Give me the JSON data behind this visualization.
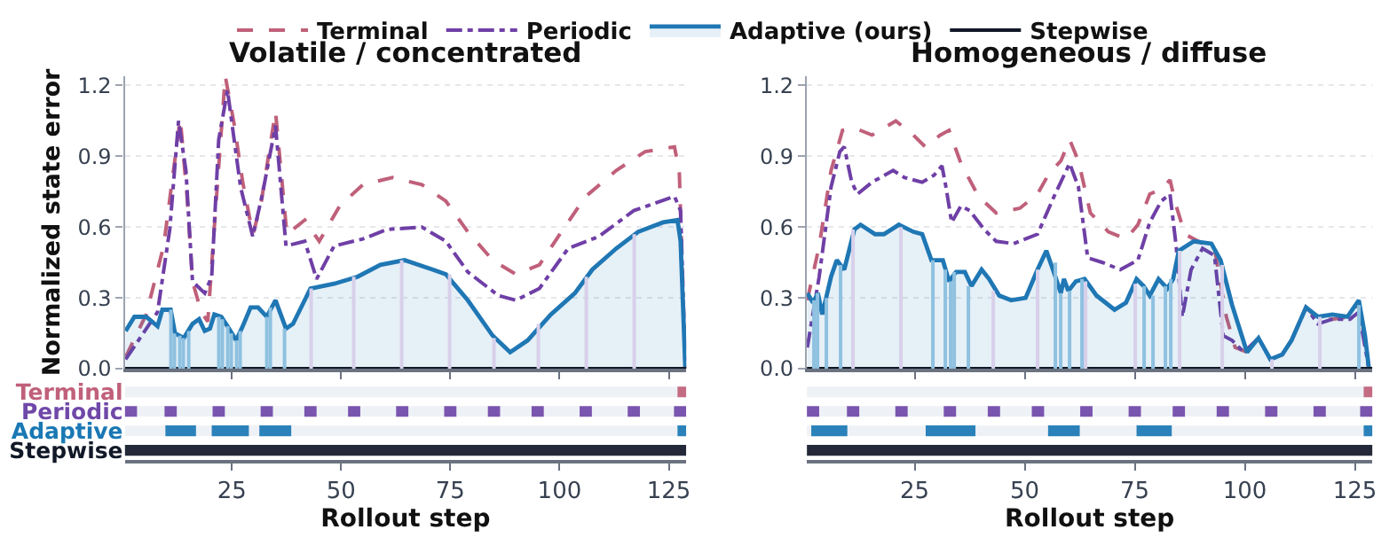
{
  "chart_data": [
    {
      "type": "line",
      "title": "Volatile / concentrated",
      "ylabel": "Normalized state error",
      "xlim": [
        0.5,
        129
      ],
      "xticks": [
        25,
        50,
        75,
        100,
        125
      ],
      "ylim": [
        0,
        1.24
      ],
      "yticks": [
        {
          "value": 0,
          "label": "0.0"
        },
        0.3,
        0.6,
        0.9,
        1.2
      ],
      "grid": "y",
      "legend": "top",
      "tick_labels": "y",
      "series": [
        {
          "type": "line",
          "name": "Terminal",
          "color": "#c0607a",
          "line_style": "dashed",
          "x": [
            0.7,
            5.4,
            9.4,
            13.2,
            14.8,
            16,
            18,
            19.5,
            21,
            23.5,
            25.5,
            27.5,
            29.8,
            31.6,
            35,
            37.6,
            41.7,
            45,
            49.7,
            55,
            61.8,
            68.5,
            74,
            79,
            84.7,
            90,
            95.4,
            100.8,
            106,
            113,
            119.6,
            126.3,
            127.4,
            128.8
          ],
          "values": [
            0.05,
            0.23,
            0.52,
            1.06,
            0.72,
            0.37,
            0.24,
            0.2,
            0.6,
            1.24,
            1.04,
            0.79,
            0.57,
            0.69,
            1.09,
            0.57,
            0.63,
            0.54,
            0.69,
            0.78,
            0.81,
            0.78,
            0.71,
            0.58,
            0.46,
            0.4,
            0.44,
            0.59,
            0.73,
            0.84,
            0.92,
            0.94,
            0.84,
            0.0
          ]
        },
        {
          "type": "line",
          "name": "Periodic",
          "color": "#6f3fa6",
          "line_style": "dashdot",
          "x": [
            0.7,
            8,
            10.8,
            12.8,
            14.5,
            16,
            18.8,
            20.4,
            22,
            24,
            27,
            29.8,
            32,
            35,
            37.4,
            41.7,
            44.4,
            48.4,
            55,
            60.5,
            68.5,
            74,
            79,
            86,
            90,
            95.4,
            102,
            109,
            117,
            126.3,
            127.7,
            128.8
          ],
          "values": [
            0.04,
            0.24,
            0.59,
            1.05,
            0.84,
            0.37,
            0.32,
            0.39,
            0.97,
            1.18,
            0.77,
            0.56,
            0.74,
            1.03,
            0.52,
            0.54,
            0.38,
            0.52,
            0.55,
            0.59,
            0.6,
            0.54,
            0.41,
            0.31,
            0.29,
            0.34,
            0.51,
            0.56,
            0.67,
            0.73,
            0.67,
            0.0
          ]
        },
        {
          "type": "area",
          "name": "Adaptive (ours)",
          "color": "#1f77b4",
          "line_style": "solid",
          "x": [
            0.7,
            2.7,
            5.4,
            8,
            9.1,
            11,
            12,
            14,
            16,
            17.5,
            18.8,
            20,
            21,
            22.6,
            24,
            26,
            27.5,
            29.3,
            31,
            33,
            35,
            37.4,
            39,
            43,
            48.4,
            53.8,
            59,
            64.5,
            71,
            74,
            79,
            84.7,
            88.7,
            92.7,
            98,
            103.5,
            107.5,
            113,
            118,
            123.7,
            127,
            127.7,
            128.8
          ],
          "values": [
            0.16,
            0.22,
            0.22,
            0.18,
            0.25,
            0.25,
            0.15,
            0.13,
            0.19,
            0.21,
            0.16,
            0.17,
            0.23,
            0.22,
            0.18,
            0.12,
            0.18,
            0.26,
            0.26,
            0.22,
            0.29,
            0.17,
            0.19,
            0.34,
            0.36,
            0.39,
            0.44,
            0.46,
            0.42,
            0.4,
            0.29,
            0.14,
            0.07,
            0.12,
            0.23,
            0.32,
            0.42,
            0.51,
            0.58,
            0.62,
            0.63,
            0.54,
            0.0
          ]
        },
        {
          "type": "line",
          "name": "Stepwise",
          "color": "#111827",
          "line_style": "solid",
          "x": [
            0.5,
            129
          ],
          "values": [
            0,
            0
          ]
        },
        {
          "type": "bar",
          "color": "#d8d0ea",
          "x": [
            43,
            53,
            64,
            75,
            85,
            95,
            106,
            117
          ],
          "values": [
            0.34,
            0.39,
            0.46,
            0.4,
            0.13,
            0.19,
            0.39,
            0.57
          ]
        },
        {
          "type": "bar",
          "color": "#8fc1e0",
          "x": [
            11,
            12,
            13,
            14,
            15,
            22,
            23,
            24,
            25,
            26,
            27,
            33,
            34,
            37
          ],
          "values": [
            0.25,
            0.15,
            0.14,
            0.13,
            0.16,
            0.22,
            0.21,
            0.18,
            0.15,
            0.12,
            0.16,
            0.22,
            0.26,
            0.17
          ]
        }
      ]
    },
    {
      "type": "bar",
      "orientation": "horizontal",
      "xlabel": "Rollout step",
      "categories": [
        "Terminal",
        "Periodic",
        "Adaptive",
        "Stepwise"
      ],
      "xlim": [
        0.5,
        129
      ],
      "xticks": [
        25,
        50,
        75,
        100,
        125
      ],
      "series": [
        {
          "colors": [
            "#c0607a",
            "#7048a8",
            "#1a78b4",
            "#111827"
          ],
          "base": [
            127,
            0.5,
            9.8,
            0.5
          ],
          "values": [
            2,
            2.8,
            7,
            128.5
          ]
        },
        {
          "colors": [
            "#c0607a",
            "#7048a8",
            "#1a78b4",
            "#111827"
          ],
          "base": [
            null,
            9.6,
            20.4,
            null
          ],
          "values": [
            null,
            2.8,
            8.5,
            null
          ]
        },
        {
          "colors": [
            "#c0607a",
            "#7048a8",
            "#1a78b4",
            "#111827"
          ],
          "base": [
            null,
            20.6,
            31.3,
            null
          ],
          "values": [
            null,
            2.8,
            7.3,
            null
          ]
        },
        {
          "colors": [
            "#c0607a",
            "#7048a8",
            "#1a78b4",
            "#111827"
          ],
          "base": [
            null,
            31.6,
            127,
            null
          ],
          "values": [
            null,
            2.8,
            2,
            null
          ]
        },
        {
          "colors": [
            "#c0607a",
            "#7048a8",
            "#1a78b4",
            "#111827"
          ],
          "base": [
            null,
            41.6,
            null,
            null
          ],
          "values": [
            null,
            2.8,
            null,
            null
          ]
        },
        {
          "colors": [
            "#c0607a",
            "#7048a8",
            "#1a78b4",
            "#111827"
          ],
          "base": [
            null,
            51.6,
            null,
            null
          ],
          "values": [
            null,
            2.8,
            null,
            null
          ]
        },
        {
          "colors": [
            "#c0607a",
            "#7048a8",
            "#1a78b4",
            "#111827"
          ],
          "base": [
            null,
            62.6,
            null,
            null
          ],
          "values": [
            null,
            2.8,
            null,
            null
          ]
        },
        {
          "colors": [
            "#c0607a",
            "#7048a8",
            "#1a78b4",
            "#111827"
          ],
          "base": [
            null,
            73.6,
            null,
            null
          ],
          "values": [
            null,
            2.8,
            null,
            null
          ]
        },
        {
          "colors": [
            "#c0607a",
            "#7048a8",
            "#1a78b4",
            "#111827"
          ],
          "base": [
            null,
            83.6,
            null,
            null
          ],
          "values": [
            null,
            2.8,
            null,
            null
          ]
        },
        {
          "colors": [
            "#c0607a",
            "#7048a8",
            "#1a78b4",
            "#111827"
          ],
          "base": [
            null,
            93.6,
            null,
            null
          ],
          "values": [
            null,
            2.8,
            null,
            null
          ]
        },
        {
          "colors": [
            "#c0607a",
            "#7048a8",
            "#1a78b4",
            "#111827"
          ],
          "base": [
            null,
            104.6,
            null,
            null
          ],
          "values": [
            null,
            2.8,
            null,
            null
          ]
        },
        {
          "colors": [
            "#c0607a",
            "#7048a8",
            "#1a78b4",
            "#111827"
          ],
          "base": [
            null,
            115.6,
            null,
            null
          ],
          "values": [
            null,
            2.8,
            null,
            null
          ]
        },
        {
          "colors": [
            "#c0607a",
            "#7048a8",
            "#1a78b4",
            "#111827"
          ],
          "base": [
            null,
            126.2,
            null,
            null
          ],
          "values": [
            null,
            2.8,
            null,
            null
          ]
        }
      ]
    },
    {
      "type": "line",
      "title": "Homogeneous / diffuse",
      "xlim": [
        0.5,
        129
      ],
      "xticks": [
        25,
        50,
        75,
        100,
        125
      ],
      "ylim": [
        0,
        1.24
      ],
      "yticks": [
        {
          "value": 0,
          "label": "0.0"
        },
        0.3,
        0.6,
        0.9,
        1.2
      ],
      "grid": "y",
      "tick_labels": "y",
      "series": [
        {
          "type": "line",
          "color": "#c0607a",
          "line_style": "dashed",
          "x": [
            0.6,
            3.3,
            6,
            8.6,
            11.3,
            15.3,
            20.7,
            24.7,
            27.4,
            30.8,
            32.8,
            35.5,
            39.5,
            43.5,
            48.9,
            52.9,
            55.6,
            58.2,
            60.2,
            62.2,
            64.9,
            69,
            73,
            75.7,
            78.4,
            81,
            83,
            84.4,
            86.4,
            90.4,
            93.1,
            95.8,
            97.8,
            100.5,
            103.1,
            105.8,
            108.5,
            110.6,
            113.9,
            116.6,
            119.9,
            123.9,
            125.9,
            128.2
          ],
          "values": [
            0.29,
            0.52,
            0.84,
            1.01,
            1.02,
            0.99,
            1.05,
            0.99,
            0.94,
            0.99,
            1.01,
            0.87,
            0.73,
            0.66,
            0.68,
            0.74,
            0.83,
            0.88,
            0.97,
            0.88,
            0.66,
            0.58,
            0.55,
            0.61,
            0.74,
            0.76,
            0.8,
            0.69,
            0.57,
            0.53,
            0.51,
            0.22,
            0.09,
            0.07,
            null,
            null,
            null,
            0.12,
            0.26,
            0.21,
            0.21,
            0.22,
            0.28,
            0.0
          ]
        },
        {
          "type": "line",
          "color": "#6f3fa6",
          "line_style": "dashdot",
          "x": [
            0.6,
            3.3,
            6,
            8,
            9,
            10.7,
            12,
            15.3,
            20.1,
            22.7,
            26.7,
            29.4,
            31.2,
            32.1,
            33.4,
            35.5,
            37.5,
            40.8,
            43.5,
            47.5,
            52.9,
            56.9,
            60.2,
            62.2,
            64.3,
            67.7,
            71.7,
            75.7,
            78.4,
            81,
            83,
            84.4,
            85.8,
            87.8,
            90.4,
            93.1,
            95.1,
            97.1,
            99.8,
            103.1,
            105.8,
            108.5,
            110.6,
            113.9,
            116.6,
            119.9,
            123.9,
            125.9,
            128.2
          ],
          "values": [
            0.09,
            0.39,
            0.77,
            0.92,
            0.94,
            0.79,
            0.74,
            0.79,
            0.84,
            0.81,
            0.79,
            0.82,
            0.86,
            0.77,
            0.62,
            0.69,
            0.67,
            0.59,
            0.54,
            0.53,
            0.57,
            0.74,
            0.87,
            0.77,
            0.47,
            0.45,
            0.42,
            0.46,
            0.62,
            0.71,
            0.74,
            0.52,
            0.22,
            0.42,
            0.51,
            0.48,
            0.14,
            0.12,
            0.07,
            0.13,
            0.04,
            0.06,
            0.12,
            0.26,
            0.19,
            0.21,
            0.21,
            0.24,
            0.0
          ]
        },
        {
          "type": "area",
          "color": "#1f77b4",
          "line_style": "solid",
          "x": [
            0.6,
            1.9,
            3,
            4,
            6,
            7.3,
            9,
            11.3,
            12.7,
            16,
            18,
            21.4,
            24.7,
            26.7,
            28.8,
            31.4,
            32.8,
            34.4,
            36.4,
            37.9,
            40.2,
            41.9,
            44.2,
            46.9,
            50.2,
            52.9,
            54.9,
            56.6,
            58.2,
            58.9,
            59.9,
            61.6,
            63.6,
            66.3,
            70.4,
            73,
            75.4,
            77,
            78.4,
            80.4,
            82.4,
            83.7,
            85,
            88.4,
            92.4,
            94.5,
            97.1,
            100.5,
            103.1,
            105.8,
            108.5,
            110.6,
            113.9,
            116.6,
            119.9,
            123.3,
            125.9,
            127.3,
            128.2
          ],
          "values": [
            0.32,
            0.28,
            0.32,
            0.23,
            0.39,
            0.46,
            0.42,
            0.59,
            0.61,
            0.57,
            0.57,
            0.61,
            0.58,
            0.57,
            0.46,
            0.46,
            0.37,
            0.41,
            0.41,
            0.35,
            0.42,
            0.38,
            0.31,
            0.29,
            0.3,
            0.42,
            0.5,
            0.41,
            0.32,
            0.38,
            0.33,
            0.37,
            0.38,
            0.31,
            0.25,
            0.28,
            0.38,
            0.35,
            0.31,
            0.38,
            0.34,
            0.38,
            0.5,
            0.54,
            0.53,
            0.46,
            0.27,
            0.07,
            0.13,
            0.04,
            0.06,
            0.12,
            0.26,
            0.22,
            0.23,
            0.22,
            0.29,
            0.14,
            0.0
          ]
        },
        {
          "type": "line",
          "color": "#111827",
          "line_style": "solid",
          "x": [
            0.5,
            129
          ],
          "values": [
            0,
            0
          ]
        },
        {
          "type": "bar",
          "color": "#d8d0ea",
          "x": [
            11,
            22,
            43,
            53,
            64,
            75,
            85,
            95,
            106,
            117
          ],
          "values": [
            0.59,
            0.6,
            0.33,
            0.42,
            0.37,
            0.36,
            0.5,
            0.44,
            0.04,
            0.22
          ]
        },
        {
          "type": "bar",
          "color": "#8fc1e0",
          "x": [
            2,
            3,
            5,
            8,
            29,
            32,
            33,
            34,
            37,
            57,
            58,
            60,
            63,
            77,
            79,
            82,
            83,
            126
          ],
          "values": [
            0.29,
            0.32,
            0.3,
            0.44,
            0.46,
            0.42,
            0.37,
            0.41,
            0.35,
            0.45,
            0.32,
            0.33,
            0.38,
            0.35,
            0.31,
            0.35,
            0.38,
            0.27
          ]
        }
      ]
    },
    {
      "type": "bar",
      "orientation": "horizontal",
      "xlabel": "Rollout step",
      "categories": [
        null,
        null,
        null,
        null
      ],
      "xlim": [
        0.5,
        129
      ],
      "xticks": [
        25,
        50,
        75,
        100,
        125
      ],
      "tick_labels": "x",
      "series": [
        {
          "colors": [
            "#c0607a",
            "#7048a8",
            "#1a78b4",
            "#111827"
          ],
          "base": [
            127,
            0.5,
            1.5,
            0.5
          ],
          "values": [
            2,
            2.8,
            8.2,
            128.5
          ]
        },
        {
          "colors": [
            "#c0607a",
            "#7048a8",
            "#1a78b4",
            "#111827"
          ],
          "base": [
            null,
            9.6,
            27.5,
            null
          ],
          "values": [
            null,
            2.8,
            11.3,
            null
          ]
        },
        {
          "colors": [
            "#c0607a",
            "#7048a8",
            "#1a78b4",
            "#111827"
          ],
          "base": [
            null,
            20.6,
            55.3,
            null
          ],
          "values": [
            null,
            2.8,
            7.2,
            null
          ]
        },
        {
          "colors": [
            "#c0607a",
            "#7048a8",
            "#1a78b4",
            "#111827"
          ],
          "base": [
            null,
            31.6,
            75.4,
            null
          ],
          "values": [
            null,
            2.8,
            8,
            null
          ]
        },
        {
          "colors": [
            "#c0607a",
            "#7048a8",
            "#1a78b4",
            "#111827"
          ],
          "base": [
            null,
            41.6,
            127,
            null
          ],
          "values": [
            null,
            2.8,
            2,
            null
          ]
        },
        {
          "colors": [
            "#c0607a",
            "#7048a8",
            "#1a78b4",
            "#111827"
          ],
          "base": [
            null,
            51.6,
            null,
            null
          ],
          "values": [
            null,
            2.8,
            null,
            null
          ]
        },
        {
          "colors": [
            "#c0607a",
            "#7048a8",
            "#1a78b4",
            "#111827"
          ],
          "base": [
            null,
            62.6,
            null,
            null
          ],
          "values": [
            null,
            2.8,
            null,
            null
          ]
        },
        {
          "colors": [
            "#c0607a",
            "#7048a8",
            "#1a78b4",
            "#111827"
          ],
          "base": [
            null,
            73.6,
            null,
            null
          ],
          "values": [
            null,
            2.8,
            null,
            null
          ]
        },
        {
          "colors": [
            "#c0607a",
            "#7048a8",
            "#1a78b4",
            "#111827"
          ],
          "base": [
            null,
            83.6,
            null,
            null
          ],
          "values": [
            null,
            2.8,
            null,
            null
          ]
        },
        {
          "colors": [
            "#c0607a",
            "#7048a8",
            "#1a78b4",
            "#111827"
          ],
          "base": [
            null,
            93.6,
            null,
            null
          ],
          "values": [
            null,
            2.8,
            null,
            null
          ]
        },
        {
          "colors": [
            "#c0607a",
            "#7048a8",
            "#1a78b4",
            "#111827"
          ],
          "base": [
            null,
            104.6,
            null,
            null
          ],
          "values": [
            null,
            2.8,
            null,
            null
          ]
        },
        {
          "colors": [
            "#c0607a",
            "#7048a8",
            "#1a78b4",
            "#111827"
          ],
          "base": [
            null,
            115.6,
            null,
            null
          ],
          "values": [
            null,
            2.8,
            null,
            null
          ]
        },
        {
          "colors": [
            "#c0607a",
            "#7048a8",
            "#1a78b4",
            "#111827"
          ],
          "base": [
            null,
            126.2,
            null,
            null
          ],
          "values": [
            null,
            2.8,
            null,
            null
          ]
        }
      ]
    }
  ]
}
